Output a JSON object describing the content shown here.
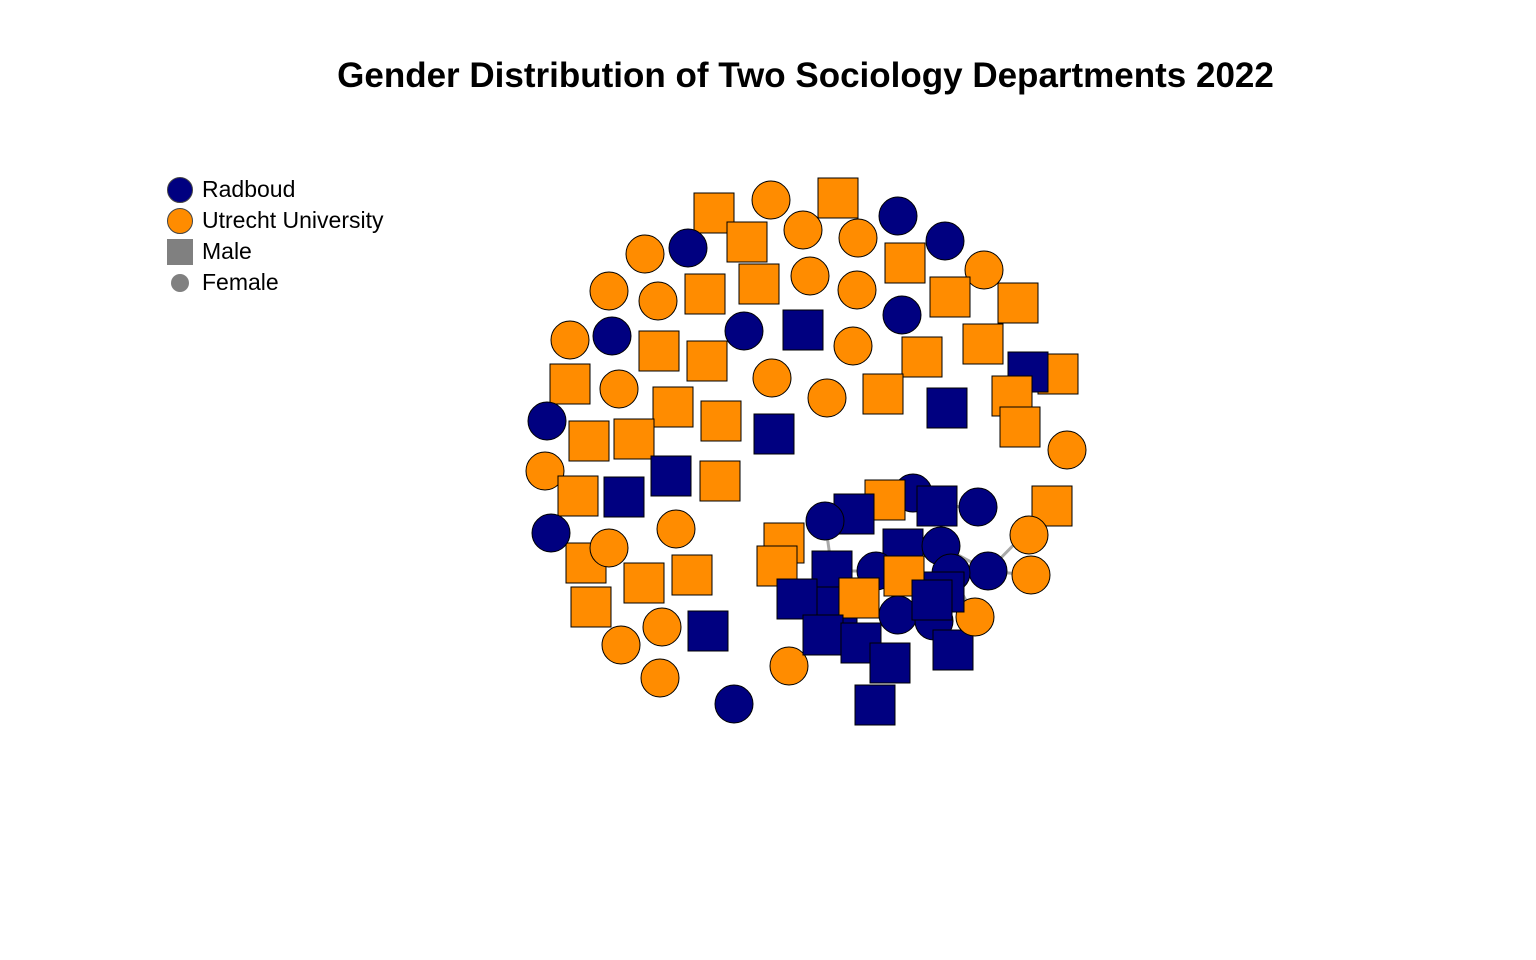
{
  "chart_data": {
    "type": "network",
    "title": "Gender Distribution of Two Sociology Departments 2022",
    "legend": {
      "placement": "top-left",
      "entries": [
        {
          "label": "Radboud",
          "symbol": "circle",
          "color": "#000080"
        },
        {
          "label": "Utrecht University",
          "symbol": "circle",
          "color": "#FF8C00"
        },
        {
          "label": "Male",
          "symbol": "square",
          "color": "#808080"
        },
        {
          "label": "Female",
          "symbol": "dot",
          "color": "#808080"
        }
      ]
    },
    "colors": {
      "Radboud": "#000080",
      "Utrecht University": "#FF8C00",
      "edge": "#A9A9A9"
    },
    "nodes": [
      {
        "u": "U",
        "g": "M"
      },
      {
        "u": "U",
        "g": "F"
      },
      {
        "u": "U",
        "g": "M"
      },
      {
        "u": "R",
        "g": "F"
      },
      {
        "u": "U",
        "g": "F"
      },
      {
        "u": "U",
        "g": "M"
      },
      {
        "u": "U",
        "g": "F"
      },
      {
        "u": "R",
        "g": "F"
      },
      {
        "u": "U",
        "g": "F"
      },
      {
        "u": "R",
        "g": "F"
      },
      {
        "u": "U",
        "g": "M"
      },
      {
        "u": "U",
        "g": "F"
      },
      {
        "u": "U",
        "g": "M"
      },
      {
        "u": "U",
        "g": "F"
      },
      {
        "u": "U",
        "g": "M"
      },
      {
        "u": "U",
        "g": "F"
      },
      {
        "u": "U",
        "g": "F"
      },
      {
        "u": "U",
        "g": "M"
      },
      {
        "u": "U",
        "g": "F"
      },
      {
        "u": "R",
        "g": "F"
      },
      {
        "u": "U",
        "g": "M"
      },
      {
        "u": "U",
        "g": "F"
      },
      {
        "u": "R",
        "g": "F"
      },
      {
        "u": "R",
        "g": "M"
      },
      {
        "u": "U",
        "g": "F"
      },
      {
        "u": "U",
        "g": "M"
      },
      {
        "u": "U",
        "g": "M"
      },
      {
        "u": "U",
        "g": "M"
      },
      {
        "u": "U",
        "g": "F"
      },
      {
        "u": "R",
        "g": "F"
      },
      {
        "u": "U",
        "g": "M"
      },
      {
        "u": "U",
        "g": "M"
      },
      {
        "u": "U",
        "g": "M"
      },
      {
        "u": "R",
        "g": "M"
      },
      {
        "u": "U",
        "g": "F"
      },
      {
        "u": "U",
        "g": "M"
      },
      {
        "u": "U",
        "g": "F"
      },
      {
        "u": "U",
        "g": "M"
      },
      {
        "u": "R",
        "g": "M"
      },
      {
        "u": "R",
        "g": "F"
      },
      {
        "u": "U",
        "g": "M"
      },
      {
        "u": "U",
        "g": "M"
      },
      {
        "u": "U",
        "g": "M"
      },
      {
        "u": "R",
        "g": "M"
      },
      {
        "u": "U",
        "g": "M"
      },
      {
        "u": "U",
        "g": "F"
      },
      {
        "u": "U",
        "g": "M"
      },
      {
        "u": "R",
        "g": "M"
      },
      {
        "u": "U",
        "g": "F"
      },
      {
        "u": "R",
        "g": "F"
      },
      {
        "u": "U",
        "g": "M"
      },
      {
        "u": "U",
        "g": "F"
      },
      {
        "u": "U",
        "g": "M"
      },
      {
        "u": "U",
        "g": "M"
      },
      {
        "u": "U",
        "g": "M"
      },
      {
        "u": "U",
        "g": "F"
      },
      {
        "u": "U",
        "g": "M"
      },
      {
        "u": "R",
        "g": "M"
      },
      {
        "u": "U",
        "g": "F"
      },
      {
        "u": "U",
        "g": "F"
      },
      {
        "u": "U",
        "g": "M"
      },
      {
        "u": "R",
        "g": "F"
      },
      {
        "u": "U",
        "g": "M"
      },
      {
        "u": "U",
        "g": "F"
      },
      {
        "u": "U",
        "g": "F"
      },
      {
        "u": "U",
        "g": "M"
      },
      {
        "u": "U",
        "g": "F"
      },
      {
        "u": "R",
        "g": "M"
      },
      {
        "u": "R",
        "g": "M"
      },
      {
        "u": "R",
        "g": "F"
      },
      {
        "u": "R",
        "g": "M"
      },
      {
        "u": "R",
        "g": "F"
      },
      {
        "u": "R",
        "g": "M"
      },
      {
        "u": "R",
        "g": "F"
      },
      {
        "u": "U",
        "g": "M"
      },
      {
        "u": "R",
        "g": "M"
      },
      {
        "u": "R",
        "g": "F"
      },
      {
        "u": "R",
        "g": "F"
      },
      {
        "u": "R",
        "g": "M"
      },
      {
        "u": "U",
        "g": "M"
      },
      {
        "u": "R",
        "g": "F"
      },
      {
        "u": "R",
        "g": "M"
      },
      {
        "u": "R",
        "g": "M"
      },
      {
        "u": "U",
        "g": "M"
      },
      {
        "u": "R",
        "g": "F"
      },
      {
        "u": "R",
        "g": "M"
      },
      {
        "u": "R",
        "g": "F"
      },
      {
        "u": "U",
        "g": "M"
      },
      {
        "u": "R",
        "g": "M"
      },
      {
        "u": "R",
        "g": "M"
      },
      {
        "u": "R",
        "g": "M"
      },
      {
        "u": "U",
        "g": "F"
      },
      {
        "u": "R",
        "g": "F"
      },
      {
        "u": "R",
        "g": "M"
      },
      {
        "u": "R",
        "g": "M"
      },
      {
        "u": "U",
        "g": "F"
      }
    ]
  }
}
